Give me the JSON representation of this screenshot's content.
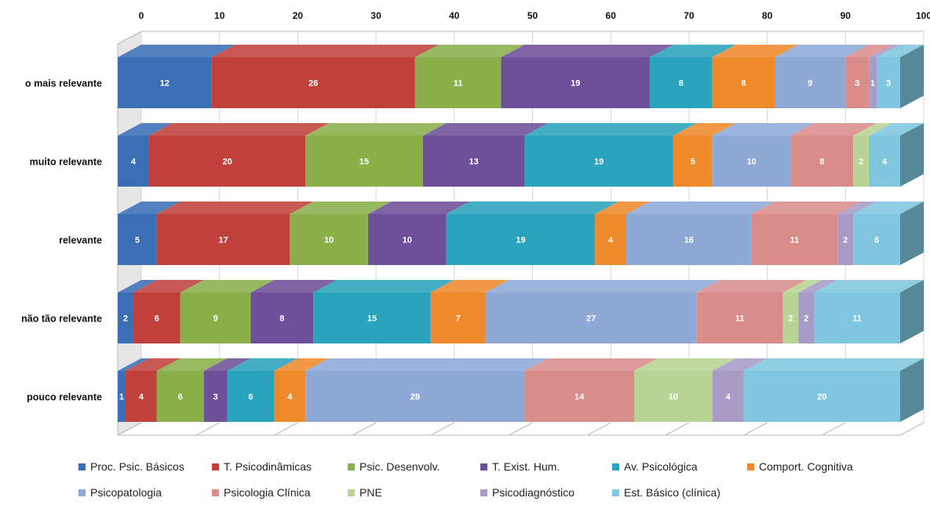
{
  "chart_data": {
    "type": "bar",
    "orientation": "horizontal",
    "stacked": true,
    "style": "3d",
    "xlim": [
      0,
      100
    ],
    "xticks": [
      "0",
      "10",
      "20",
      "30",
      "40",
      "50",
      "60",
      "70",
      "80",
      "90",
      "100"
    ],
    "categories": [
      "o mais relevante",
      "muito relevante",
      "relevante",
      "não tão relevante",
      "pouco relevante"
    ],
    "legend_position": "bottom",
    "series": [
      {
        "name": "Proc. Psic. Básicos",
        "color": "#3b6fb5",
        "values": [
          12,
          4,
          5,
          2,
          1
        ]
      },
      {
        "name": "T. Psicodinâmicas",
        "color": "#c0413b",
        "values": [
          26,
          20,
          17,
          6,
          4
        ]
      },
      {
        "name": "Psic. Desenvolv.",
        "color": "#8bb04a",
        "values": [
          11,
          15,
          10,
          9,
          6
        ]
      },
      {
        "name": "T. Exist. Hum.",
        "color": "#6e4f9a",
        "values": [
          19,
          13,
          10,
          8,
          3
        ]
      },
      {
        "name": "Av. Psicológica",
        "color": "#2aa3bd",
        "values": [
          8,
          19,
          19,
          15,
          6
        ]
      },
      {
        "name": "Comport. Cognitiva",
        "color": "#ee8a2c",
        "values": [
          8,
          5,
          4,
          7,
          4
        ]
      },
      {
        "name": "Psicopatologia",
        "color": "#8ea9d6",
        "values": [
          9,
          10,
          16,
          27,
          28
        ]
      },
      {
        "name": "Psicologia Clínica",
        "color": "#d98d8b",
        "values": [
          3,
          8,
          11,
          11,
          14
        ]
      },
      {
        "name": "PNE",
        "color": "#b9d494",
        "values": [
          0,
          2,
          0,
          2,
          10
        ]
      },
      {
        "name": "Psicodiagnóstico",
        "color": "#a89bc7",
        "values": [
          1,
          0,
          2,
          2,
          4
        ]
      },
      {
        "name": "Est. Básico (clínica)",
        "color": "#7fc6de",
        "values": [
          3,
          4,
          6,
          11,
          20
        ]
      }
    ]
  }
}
